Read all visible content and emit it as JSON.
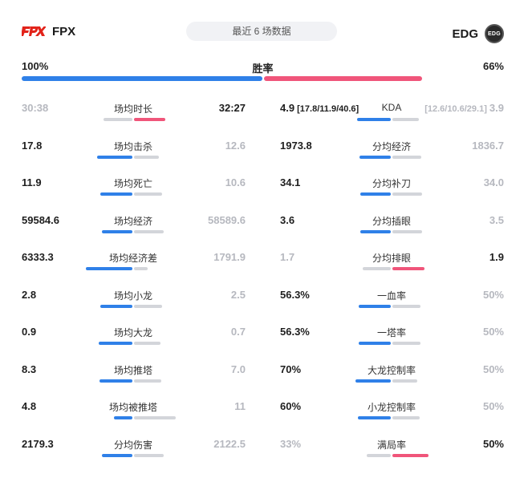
{
  "header": {
    "left_team": "FPX",
    "right_team": "EDG",
    "center_label": "最近 6 场数据"
  },
  "colors": {
    "blue": "#2f80e8",
    "red": "#f0557a",
    "gray": "#d3d5da",
    "win_text": "#1e1e1e",
    "lose_text": "#b6b8bf"
  },
  "win_rate": {
    "label": "胜率",
    "left": "100%",
    "right": "66%",
    "left_fraction": 1.0,
    "right_fraction": 0.66
  },
  "left_stats": [
    {
      "label": "场均时长",
      "left": "30:38",
      "right": "32:27",
      "winner": "right"
    },
    {
      "label": "场均击杀",
      "left": "17.8",
      "right": "12.6",
      "winner": "left"
    },
    {
      "label": "场均死亡",
      "left": "11.9",
      "right": "10.6",
      "winner": "left"
    },
    {
      "label": "场均经济",
      "left": "59584.6",
      "right": "58589.6",
      "winner": "left"
    },
    {
      "label": "场均经济差",
      "left": "6333.3",
      "right": "1791.9",
      "winner": "left"
    },
    {
      "label": "场均小龙",
      "left": "2.8",
      "right": "2.5",
      "winner": "left"
    },
    {
      "label": "场均大龙",
      "left": "0.9",
      "right": "0.7",
      "winner": "left"
    },
    {
      "label": "场均推塔",
      "left": "8.3",
      "right": "7.0",
      "winner": "left"
    },
    {
      "label": "场均被推塔",
      "left": "4.8",
      "right": "11",
      "winner": "left"
    },
    {
      "label": "分均伤害",
      "left": "2179.3",
      "right": "2122.5",
      "winner": "left"
    }
  ],
  "right_stats": [
    {
      "label": "KDA",
      "left": "4.9",
      "left_detail": "[17.8/11.9/40.6]",
      "right": "3.9",
      "right_detail": "[12.6/10.6/29.1]",
      "winner": "left"
    },
    {
      "label": "分均经济",
      "left": "1973.8",
      "right": "1836.7",
      "winner": "left"
    },
    {
      "label": "分均补刀",
      "left": "34.1",
      "right": "34.0",
      "winner": "left"
    },
    {
      "label": "分均插眼",
      "left": "3.6",
      "right": "3.5",
      "winner": "left"
    },
    {
      "label": "分均排眼",
      "left": "1.7",
      "right": "1.9",
      "winner": "right"
    },
    {
      "label": "一血率",
      "left": "56.3%",
      "right": "50%",
      "winner": "left"
    },
    {
      "label": "一塔率",
      "left": "56.3%",
      "right": "50%",
      "winner": "left"
    },
    {
      "label": "大龙控制率",
      "left": "70%",
      "right": "50%",
      "winner": "left"
    },
    {
      "label": "小龙控制率",
      "left": "60%",
      "right": "50%",
      "winner": "left"
    },
    {
      "label": "满局率",
      "left": "33%",
      "right": "50%",
      "winner": "right"
    }
  ]
}
